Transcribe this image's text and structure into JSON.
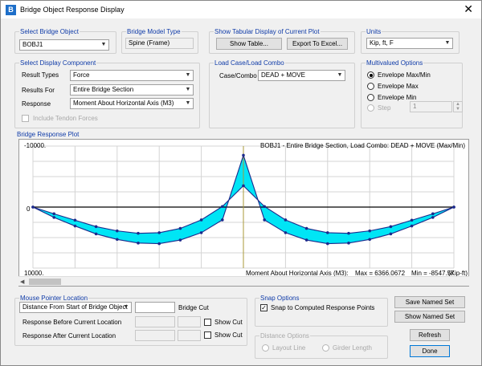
{
  "window": {
    "title": "Bridge Object Response Display",
    "icon_letter": "B",
    "close_glyph": "✕"
  },
  "select_object": {
    "legend": "Select Bridge Object",
    "value": "BOBJ1"
  },
  "model_type": {
    "legend": "Bridge Model Type",
    "value": "Spine (Frame)"
  },
  "tabular": {
    "legend": "Show Tabular Display of Current Plot",
    "show_table": "Show Table...",
    "export_excel": "Export To Excel..."
  },
  "units": {
    "legend": "Units",
    "value": "Kip, ft, F"
  },
  "display": {
    "legend": "Select Display Component",
    "result_types_label": "Result Types",
    "result_types": "Force",
    "results_for_label": "Results For",
    "results_for": "Entire Bridge Section",
    "response_label": "Response",
    "response": "Moment About Horizontal Axis  (M3)",
    "tendon_label": "Include Tendon Forces"
  },
  "load_case": {
    "legend": "Load Case/Load Combo",
    "label": "Case/Combo",
    "value": "DEAD + MOVE"
  },
  "multivalued": {
    "legend": "Multivalued Options",
    "opt1": "Envelope Max/Min",
    "opt2": "Envelope Max",
    "opt3": "Envelope Min",
    "step_label": "Step",
    "step_value": "1"
  },
  "plot": {
    "legend": "Bridge Response Plot",
    "header": "BOBJ1 - Entire Bridge Section,  Load Combo: DEAD + MOVE (Max/Min)",
    "y_top": "-10000.",
    "y_zero": "0",
    "y_bottom": "10000.",
    "footer_left": "Moment About Horizontal Axis  (M3):",
    "footer_max": "Max = 6366.0672",
    "footer_min": "Min = -8547.57",
    "footer_units": "(Kip-ft)"
  },
  "chart_data": {
    "type": "area",
    "title": "BOBJ1 - Entire Bridge Section,  Load Combo: DEAD + MOVE (Max/Min)",
    "xlabel": "",
    "ylabel": "Moment About Horizontal Axis  (M3) (Kip-ft)",
    "ylim": [
      10000,
      -10000
    ],
    "x": [
      0,
      0.05,
      0.1,
      0.15,
      0.2,
      0.25,
      0.3,
      0.35,
      0.4,
      0.45,
      0.5,
      0.55,
      0.6,
      0.65,
      0.7,
      0.75,
      0.8,
      0.85,
      0.9,
      0.95,
      1
    ],
    "series": [
      {
        "name": "Max",
        "values": [
          0,
          1100,
          2150,
          3200,
          3900,
          4300,
          4200,
          3500,
          2100,
          -100,
          -3500,
          -100,
          2100,
          3500,
          4200,
          4300,
          3900,
          3200,
          2150,
          1100,
          0
        ]
      },
      {
        "name": "Min",
        "values": [
          0,
          1700,
          3100,
          4400,
          5300,
          5900,
          6000,
          5400,
          4200,
          2100,
          -8500,
          2100,
          4200,
          5400,
          6000,
          5900,
          5300,
          4400,
          3100,
          1700,
          0
        ]
      }
    ],
    "grid": true
  },
  "pointer": {
    "legend": "Mouse Pointer Location",
    "mode": "Distance From Start of Bridge Object",
    "value": "",
    "cut_label": "Bridge Cut",
    "before_label": "Response Before Current Location",
    "after_label": "Response After Current Location",
    "show_cut": "Show Cut"
  },
  "snap": {
    "legend": "Snap Options",
    "label": "Snap to Computed Response Points"
  },
  "distance": {
    "legend": "Distance Options",
    "layout": "Layout Line",
    "girder": "Girder Length"
  },
  "buttons": {
    "save": "Save Named Set",
    "show": "Show Named Set",
    "refresh": "Refresh",
    "done": "Done"
  }
}
